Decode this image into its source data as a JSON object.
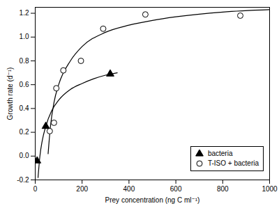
{
  "chart_data": {
    "type": "scatter",
    "x_label": "Prey concentration (ng C ml⁻¹)",
    "y_label": "Growth rate (d⁻¹)",
    "xlim": [
      0,
      1000
    ],
    "xticks": [
      0,
      200,
      400,
      600,
      800,
      1000
    ],
    "ylim": [
      -0.2,
      1.25
    ],
    "yticks": [
      -0.2,
      {
        "value": 0,
        "label": "0.0"
      },
      0.2,
      0.4,
      0.6,
      0.8,
      {
        "value": 1,
        "label": "1.0"
      },
      1.2
    ],
    "legend": "bottom right",
    "series": [
      {
        "name": "bacteria",
        "color": "#000000",
        "marker": "triangle",
        "x": [
          8,
          45,
          320
        ],
        "values": [
          -0.04,
          0.25,
          0.69
        ],
        "fit": {
          "x": [
            12,
            20,
            30,
            45,
            70,
            100,
            150,
            200,
            250,
            300,
            350
          ],
          "values": [
            -0.18,
            0.0,
            0.13,
            0.25,
            0.38,
            0.47,
            0.56,
            0.61,
            0.65,
            0.68,
            0.7
          ]
        }
      },
      {
        "name": "T-ISO + bacteria",
        "color": "#000000",
        "marker": "open-circle",
        "x": [
          62,
          80,
          90,
          120,
          195,
          290,
          470,
          875
        ],
        "values": [
          0.21,
          0.28,
          0.57,
          0.72,
          0.8,
          1.07,
          1.19,
          1.18
        ],
        "fit": {
          "x": [
            55,
            65,
            80,
            100,
            150,
            200,
            300,
            400,
            500,
            600,
            800,
            1000
          ],
          "values": [
            0.02,
            0.25,
            0.45,
            0.6,
            0.8,
            0.92,
            1.04,
            1.1,
            1.14,
            1.17,
            1.21,
            1.23
          ]
        }
      }
    ]
  }
}
